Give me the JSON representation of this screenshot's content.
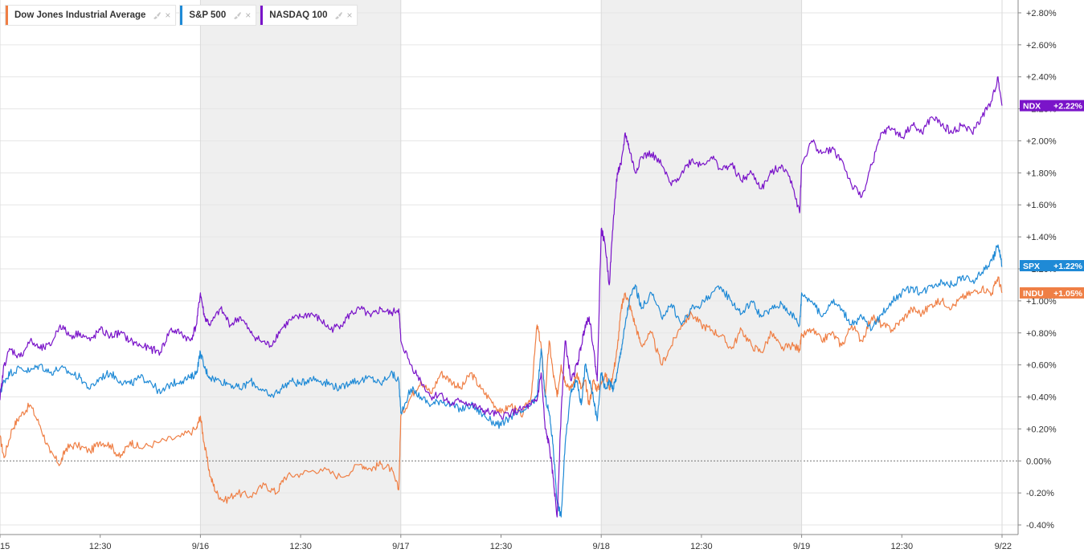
{
  "legend": {
    "items": [
      {
        "label": "Dow Jones Industrial Average",
        "color": "#ef7f45"
      },
      {
        "label": "S&P 500",
        "color": "#1f8ad6"
      },
      {
        "label": "NASDAQ 100",
        "color": "#7a14c9"
      }
    ],
    "settings_icon": "brush-icon",
    "close_glyph": "×"
  },
  "badges": [
    {
      "symbol": "NDX",
      "value": "+2.22%",
      "color": "#7a14c9"
    },
    {
      "symbol": "SPX",
      "value": "+1.22%",
      "color": "#1f8ad6"
    },
    {
      "symbol": "INDU",
      "value": "+1.05%",
      "color": "#ef7f45"
    }
  ],
  "chart_data": {
    "type": "line",
    "ylim": [
      -0.46,
      2.88
    ],
    "yticks": [
      -0.4,
      -0.2,
      0.0,
      0.2,
      0.4,
      0.6,
      0.8,
      1.0,
      1.2,
      1.4,
      1.6,
      1.8,
      2.0,
      2.2,
      2.4,
      2.6,
      2.8
    ],
    "ytick_labels": [
      "-0.40%",
      "-0.20%",
      "0.00%",
      "+0.20%",
      "+0.40%",
      "+0.60%",
      "+0.80%",
      "+1.00%",
      "+1.20%",
      "+1.40%",
      "+1.60%",
      "+1.80%",
      "+2.00%",
      "+2.20%",
      "+2.40%",
      "+2.60%",
      "+2.80%"
    ],
    "xlim": [
      0,
      5
    ],
    "xticks": [
      0,
      0.5,
      1,
      1.5,
      2,
      2.5,
      3,
      3.5,
      4,
      4.5,
      5
    ],
    "xtick_labels": [
      "15",
      "12:30",
      "9/16",
      "12:30",
      "9/17",
      "12:30",
      "9/18",
      "12:30",
      "9/19",
      "12:30",
      "9/22"
    ],
    "shaded_days": [
      [
        1,
        2
      ],
      [
        3,
        4
      ]
    ],
    "baseline": 0.0,
    "grid": true,
    "series": [
      {
        "name": "Dow Jones Industrial Average",
        "color": "#ef7f45",
        "x": [
          0,
          0.02,
          0.06,
          0.1,
          0.15,
          0.2,
          0.25,
          0.3,
          0.33,
          0.38,
          0.45,
          0.5,
          0.55,
          0.6,
          0.65,
          0.7,
          0.8,
          0.9,
          0.98,
          1.0,
          1.02,
          1.05,
          1.08,
          1.12,
          1.18,
          1.25,
          1.32,
          1.38,
          1.42,
          1.5,
          1.6,
          1.7,
          1.8,
          1.85,
          1.9,
          1.95,
          1.99,
          2.0,
          2.05,
          2.1,
          2.15,
          2.2,
          2.25,
          2.3,
          2.35,
          2.4,
          2.45,
          2.5,
          2.55,
          2.6,
          2.65,
          2.68,
          2.7,
          2.72,
          2.74,
          2.76,
          2.78,
          2.8,
          2.82,
          2.85,
          2.88,
          2.9,
          2.92,
          2.94,
          2.96,
          2.98,
          3.0,
          3.02,
          3.04,
          3.06,
          3.08,
          3.1,
          3.12,
          3.14,
          3.17,
          3.2,
          3.25,
          3.3,
          3.35,
          3.4,
          3.45,
          3.5,
          3.55,
          3.6,
          3.65,
          3.7,
          3.75,
          3.8,
          3.85,
          3.9,
          3.95,
          3.99,
          4.0,
          4.05,
          4.1,
          4.15,
          4.2,
          4.25,
          4.3,
          4.35,
          4.4,
          4.45,
          4.5,
          4.55,
          4.6,
          4.65,
          4.7,
          4.75,
          4.8,
          4.85,
          4.9,
          4.95,
          4.98,
          5.0
        ],
        "y": [
          0.15,
          0.02,
          0.2,
          0.28,
          0.35,
          0.22,
          0.05,
          -0.02,
          0.08,
          0.1,
          0.06,
          0.12,
          0.1,
          0.02,
          0.12,
          0.08,
          0.12,
          0.15,
          0.2,
          0.28,
          0.1,
          -0.1,
          -0.2,
          -0.25,
          -0.2,
          -0.22,
          -0.15,
          -0.2,
          -0.1,
          -0.08,
          -0.05,
          -0.1,
          -0.02,
          -0.05,
          -0.02,
          -0.05,
          -0.18,
          0.28,
          0.4,
          0.5,
          0.42,
          0.55,
          0.5,
          0.45,
          0.55,
          0.45,
          0.38,
          0.3,
          0.35,
          0.28,
          0.4,
          0.85,
          0.72,
          0.4,
          0.75,
          0.55,
          0.4,
          0.6,
          0.5,
          0.45,
          0.55,
          0.45,
          0.5,
          0.35,
          0.5,
          0.45,
          0.48,
          0.55,
          0.45,
          0.55,
          0.7,
          0.95,
          1.05,
          0.98,
          0.85,
          0.72,
          0.8,
          0.6,
          0.72,
          0.85,
          0.92,
          0.85,
          0.82,
          0.78,
          0.7,
          0.82,
          0.72,
          0.68,
          0.8,
          0.7,
          0.72,
          0.7,
          0.78,
          0.82,
          0.75,
          0.8,
          0.72,
          0.85,
          0.75,
          0.9,
          0.85,
          0.82,
          0.88,
          0.95,
          0.92,
          0.98,
          1.0,
          0.96,
          1.02,
          1.05,
          1.08,
          1.05,
          1.15,
          1.05
        ]
      },
      {
        "name": "S&P 500",
        "color": "#1f8ad6",
        "x": [
          0,
          0.02,
          0.05,
          0.1,
          0.15,
          0.2,
          0.25,
          0.3,
          0.35,
          0.4,
          0.45,
          0.5,
          0.55,
          0.6,
          0.65,
          0.7,
          0.75,
          0.8,
          0.85,
          0.9,
          0.95,
          0.98,
          1.0,
          1.02,
          1.05,
          1.1,
          1.15,
          1.2,
          1.25,
          1.3,
          1.35,
          1.4,
          1.45,
          1.5,
          1.55,
          1.6,
          1.65,
          1.7,
          1.75,
          1.8,
          1.85,
          1.9,
          1.95,
          1.99,
          2.0,
          2.05,
          2.1,
          2.15,
          2.2,
          2.25,
          2.3,
          2.35,
          2.4,
          2.45,
          2.5,
          2.55,
          2.6,
          2.65,
          2.68,
          2.7,
          2.72,
          2.74,
          2.76,
          2.78,
          2.8,
          2.82,
          2.85,
          2.88,
          2.9,
          2.92,
          2.94,
          2.96,
          2.98,
          3.0,
          3.02,
          3.04,
          3.06,
          3.08,
          3.1,
          3.12,
          3.14,
          3.17,
          3.2,
          3.25,
          3.3,
          3.35,
          3.4,
          3.45,
          3.5,
          3.55,
          3.6,
          3.65,
          3.7,
          3.75,
          3.8,
          3.85,
          3.9,
          3.95,
          3.99,
          4.0,
          4.05,
          4.1,
          4.15,
          4.2,
          4.25,
          4.3,
          4.35,
          4.4,
          4.45,
          4.5,
          4.55,
          4.6,
          4.65,
          4.7,
          4.75,
          4.8,
          4.85,
          4.9,
          4.95,
          4.98,
          5.0
        ],
        "y": [
          0.42,
          0.5,
          0.55,
          0.58,
          0.56,
          0.6,
          0.55,
          0.58,
          0.55,
          0.52,
          0.45,
          0.52,
          0.55,
          0.5,
          0.48,
          0.52,
          0.5,
          0.42,
          0.48,
          0.5,
          0.52,
          0.55,
          0.68,
          0.58,
          0.52,
          0.5,
          0.48,
          0.45,
          0.5,
          0.45,
          0.4,
          0.45,
          0.5,
          0.48,
          0.52,
          0.5,
          0.48,
          0.45,
          0.5,
          0.5,
          0.52,
          0.48,
          0.55,
          0.5,
          0.3,
          0.45,
          0.4,
          0.35,
          0.38,
          0.35,
          0.32,
          0.35,
          0.3,
          0.25,
          0.22,
          0.28,
          0.3,
          0.35,
          0.4,
          0.7,
          0.4,
          0.3,
          0.1,
          -0.25,
          -0.35,
          0.1,
          0.45,
          0.5,
          0.35,
          0.6,
          0.5,
          0.4,
          0.25,
          0.55,
          0.45,
          0.5,
          0.45,
          0.55,
          0.7,
          0.85,
          1.0,
          1.1,
          0.95,
          1.05,
          0.9,
          0.98,
          0.85,
          0.95,
          0.98,
          1.05,
          1.08,
          1.0,
          0.92,
          1.0,
          0.9,
          0.95,
          0.98,
          0.92,
          0.85,
          1.05,
          1.0,
          0.9,
          1.0,
          0.95,
          0.85,
          0.9,
          0.82,
          0.92,
          1.0,
          1.05,
          1.08,
          1.05,
          1.1,
          1.12,
          1.1,
          1.15,
          1.12,
          1.18,
          1.25,
          1.35,
          1.22
        ]
      },
      {
        "name": "NASDAQ 100",
        "color": "#7a14c9",
        "x": [
          0,
          0.02,
          0.05,
          0.1,
          0.15,
          0.2,
          0.25,
          0.3,
          0.35,
          0.4,
          0.45,
          0.5,
          0.55,
          0.6,
          0.65,
          0.7,
          0.75,
          0.8,
          0.85,
          0.9,
          0.95,
          0.98,
          1.0,
          1.02,
          1.05,
          1.1,
          1.15,
          1.2,
          1.25,
          1.3,
          1.35,
          1.4,
          1.45,
          1.5,
          1.55,
          1.6,
          1.65,
          1.7,
          1.75,
          1.8,
          1.85,
          1.9,
          1.95,
          1.99,
          2.0,
          2.05,
          2.1,
          2.15,
          2.2,
          2.25,
          2.3,
          2.35,
          2.4,
          2.45,
          2.5,
          2.55,
          2.6,
          2.65,
          2.68,
          2.7,
          2.72,
          2.74,
          2.76,
          2.78,
          2.8,
          2.82,
          2.85,
          2.88,
          2.9,
          2.92,
          2.94,
          2.96,
          2.98,
          3.0,
          3.02,
          3.04,
          3.06,
          3.08,
          3.1,
          3.12,
          3.14,
          3.17,
          3.2,
          3.25,
          3.3,
          3.35,
          3.4,
          3.45,
          3.5,
          3.55,
          3.6,
          3.65,
          3.7,
          3.75,
          3.8,
          3.85,
          3.9,
          3.95,
          3.99,
          4.0,
          4.05,
          4.1,
          4.15,
          4.2,
          4.25,
          4.3,
          4.35,
          4.4,
          4.45,
          4.5,
          4.55,
          4.6,
          4.65,
          4.7,
          4.75,
          4.8,
          4.85,
          4.9,
          4.95,
          4.98,
          5.0
        ],
        "y": [
          0.38,
          0.6,
          0.7,
          0.65,
          0.75,
          0.7,
          0.72,
          0.85,
          0.78,
          0.8,
          0.75,
          0.82,
          0.78,
          0.8,
          0.75,
          0.72,
          0.7,
          0.68,
          0.82,
          0.8,
          0.75,
          0.85,
          1.05,
          0.9,
          0.85,
          0.95,
          0.85,
          0.9,
          0.8,
          0.75,
          0.72,
          0.82,
          0.88,
          0.9,
          0.92,
          0.88,
          0.82,
          0.85,
          0.92,
          0.95,
          0.9,
          0.95,
          0.92,
          0.95,
          0.75,
          0.6,
          0.5,
          0.4,
          0.42,
          0.35,
          0.38,
          0.35,
          0.32,
          0.3,
          0.28,
          0.3,
          0.32,
          0.35,
          0.38,
          0.55,
          0.2,
          0.1,
          -0.1,
          -0.35,
          0.3,
          0.75,
          0.5,
          0.6,
          0.72,
          0.85,
          0.9,
          0.72,
          0.5,
          1.45,
          1.35,
          1.1,
          1.5,
          1.8,
          1.85,
          2.05,
          1.95,
          1.8,
          1.9,
          1.92,
          1.85,
          1.72,
          1.8,
          1.88,
          1.85,
          1.9,
          1.82,
          1.85,
          1.75,
          1.8,
          1.7,
          1.8,
          1.85,
          1.75,
          1.55,
          1.85,
          2.0,
          1.92,
          1.95,
          1.88,
          1.72,
          1.65,
          1.85,
          2.05,
          2.08,
          2.02,
          2.1,
          2.05,
          2.15,
          2.1,
          2.05,
          2.1,
          2.05,
          2.15,
          2.25,
          2.4,
          2.22
        ]
      }
    ]
  }
}
